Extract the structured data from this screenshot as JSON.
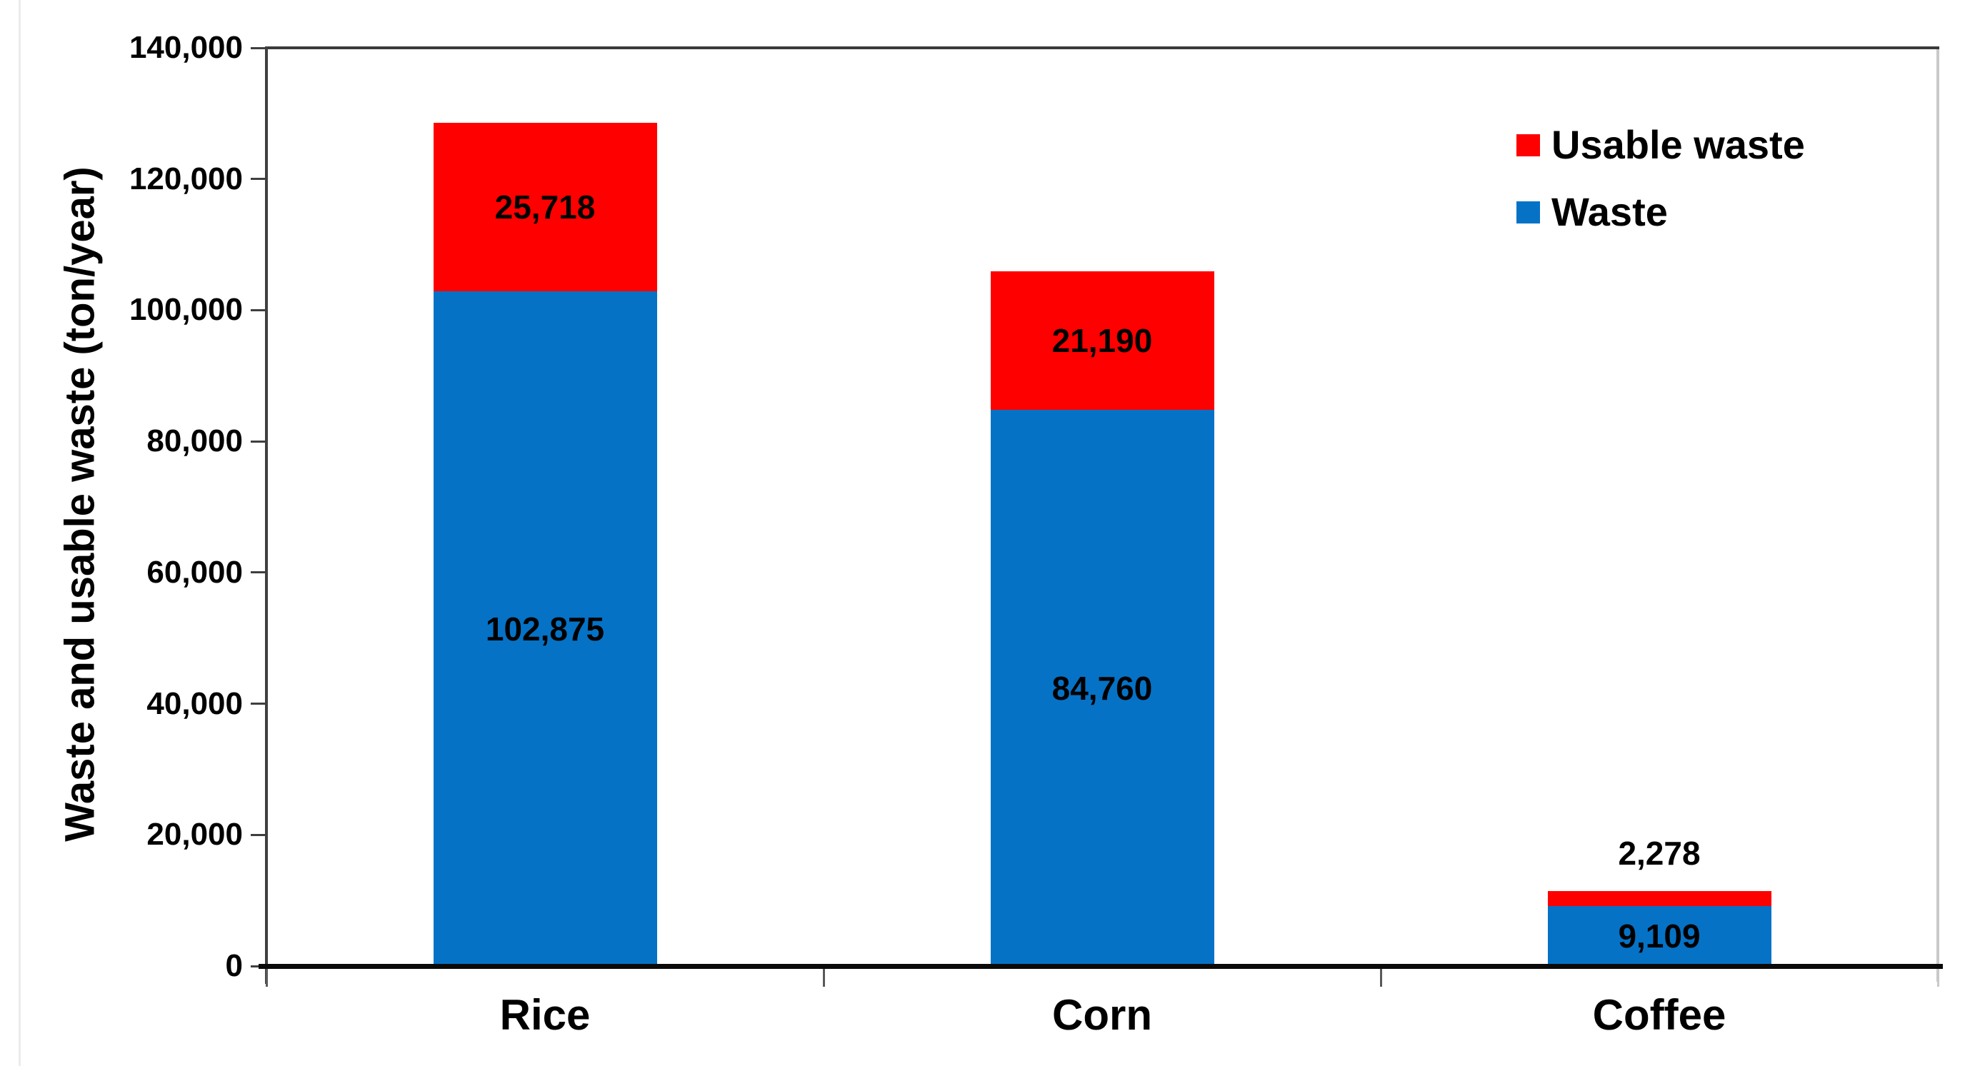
{
  "chart_data": {
    "type": "bar",
    "stacked": true,
    "title": "",
    "xlabel": "",
    "ylabel": "Waste and usable waste (ton/year)",
    "categories": [
      "Rice",
      "Corn",
      "Coffee"
    ],
    "series": [
      {
        "name": "Waste",
        "color": "#0572c6",
        "values": [
          102875,
          84760,
          9109
        ],
        "labels": [
          "102,875",
          "84,760",
          "9,109"
        ]
      },
      {
        "name": "Usable waste",
        "color": "#ff0000",
        "values": [
          25718,
          21190,
          2278
        ],
        "labels": [
          "25,718",
          "21,190",
          "2,278"
        ]
      }
    ],
    "stack_totals": [
      128593,
      105950,
      11387
    ],
    "ylim": [
      0,
      140000
    ],
    "ytick_step": 20000,
    "ytick_labels": [
      "0",
      "20,000",
      "40,000",
      "60,000",
      "80,000",
      "100,000",
      "120,000",
      "140,000"
    ],
    "grid": false,
    "legend": {
      "position": "top-right-inside",
      "entries": [
        {
          "label": "Usable waste",
          "color": "#ff0000"
        },
        {
          "label": "Waste",
          "color": "#0572c6"
        }
      ]
    }
  },
  "colors": {
    "waste_blue": "#0572c6",
    "usable_red": "#ff0000",
    "axis_dark": "#3f3f3f",
    "axis_black": "#0a0a0a",
    "border_light": "#c9c9c9",
    "background": "#ffffff",
    "text": "#000000"
  }
}
